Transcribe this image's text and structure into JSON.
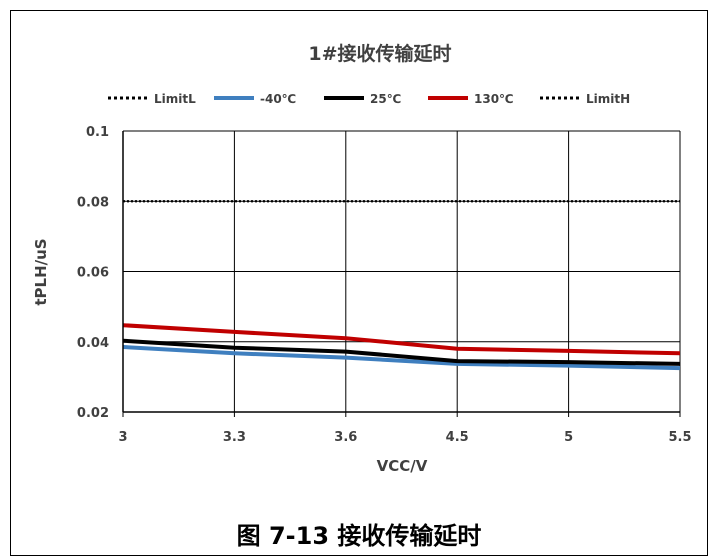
{
  "caption": "图 7-13 接收传输延时",
  "chart_data": {
    "type": "line",
    "title": "1#接收传输延时",
    "xlabel": "VCC/V",
    "ylabel": "tPLH/uS",
    "categories": [
      "3",
      "3.3",
      "3.6",
      "4.5",
      "5",
      "5.5"
    ],
    "ylim": [
      0.02,
      0.1
    ],
    "yticks": [
      "0.02",
      "0.04",
      "0.06",
      "0.08",
      "0.1"
    ],
    "grid": true,
    "legend_position": "top",
    "series": [
      {
        "name": "LimitL",
        "values": [
          0.08,
          0.08,
          0.08,
          0.08,
          0.08,
          0.08
        ],
        "color": "#000000",
        "style": "dotted"
      },
      {
        "name": "-40℃",
        "values": [
          0.0385,
          0.0367,
          0.0355,
          0.0337,
          0.0332,
          0.0325
        ],
        "color": "#3F7FBF",
        "style": "solid"
      },
      {
        "name": "25℃",
        "values": [
          0.0403,
          0.0383,
          0.0372,
          0.0345,
          0.0342,
          0.0337
        ],
        "color": "#000000",
        "style": "solid"
      },
      {
        "name": "130℃",
        "values": [
          0.0447,
          0.0428,
          0.041,
          0.038,
          0.0374,
          0.0367
        ],
        "color": "#C00000",
        "style": "solid"
      },
      {
        "name": "LimitH",
        "values": [
          0.08,
          0.08,
          0.08,
          0.08,
          0.08,
          0.08
        ],
        "color": "#000000",
        "style": "dotted"
      }
    ]
  }
}
